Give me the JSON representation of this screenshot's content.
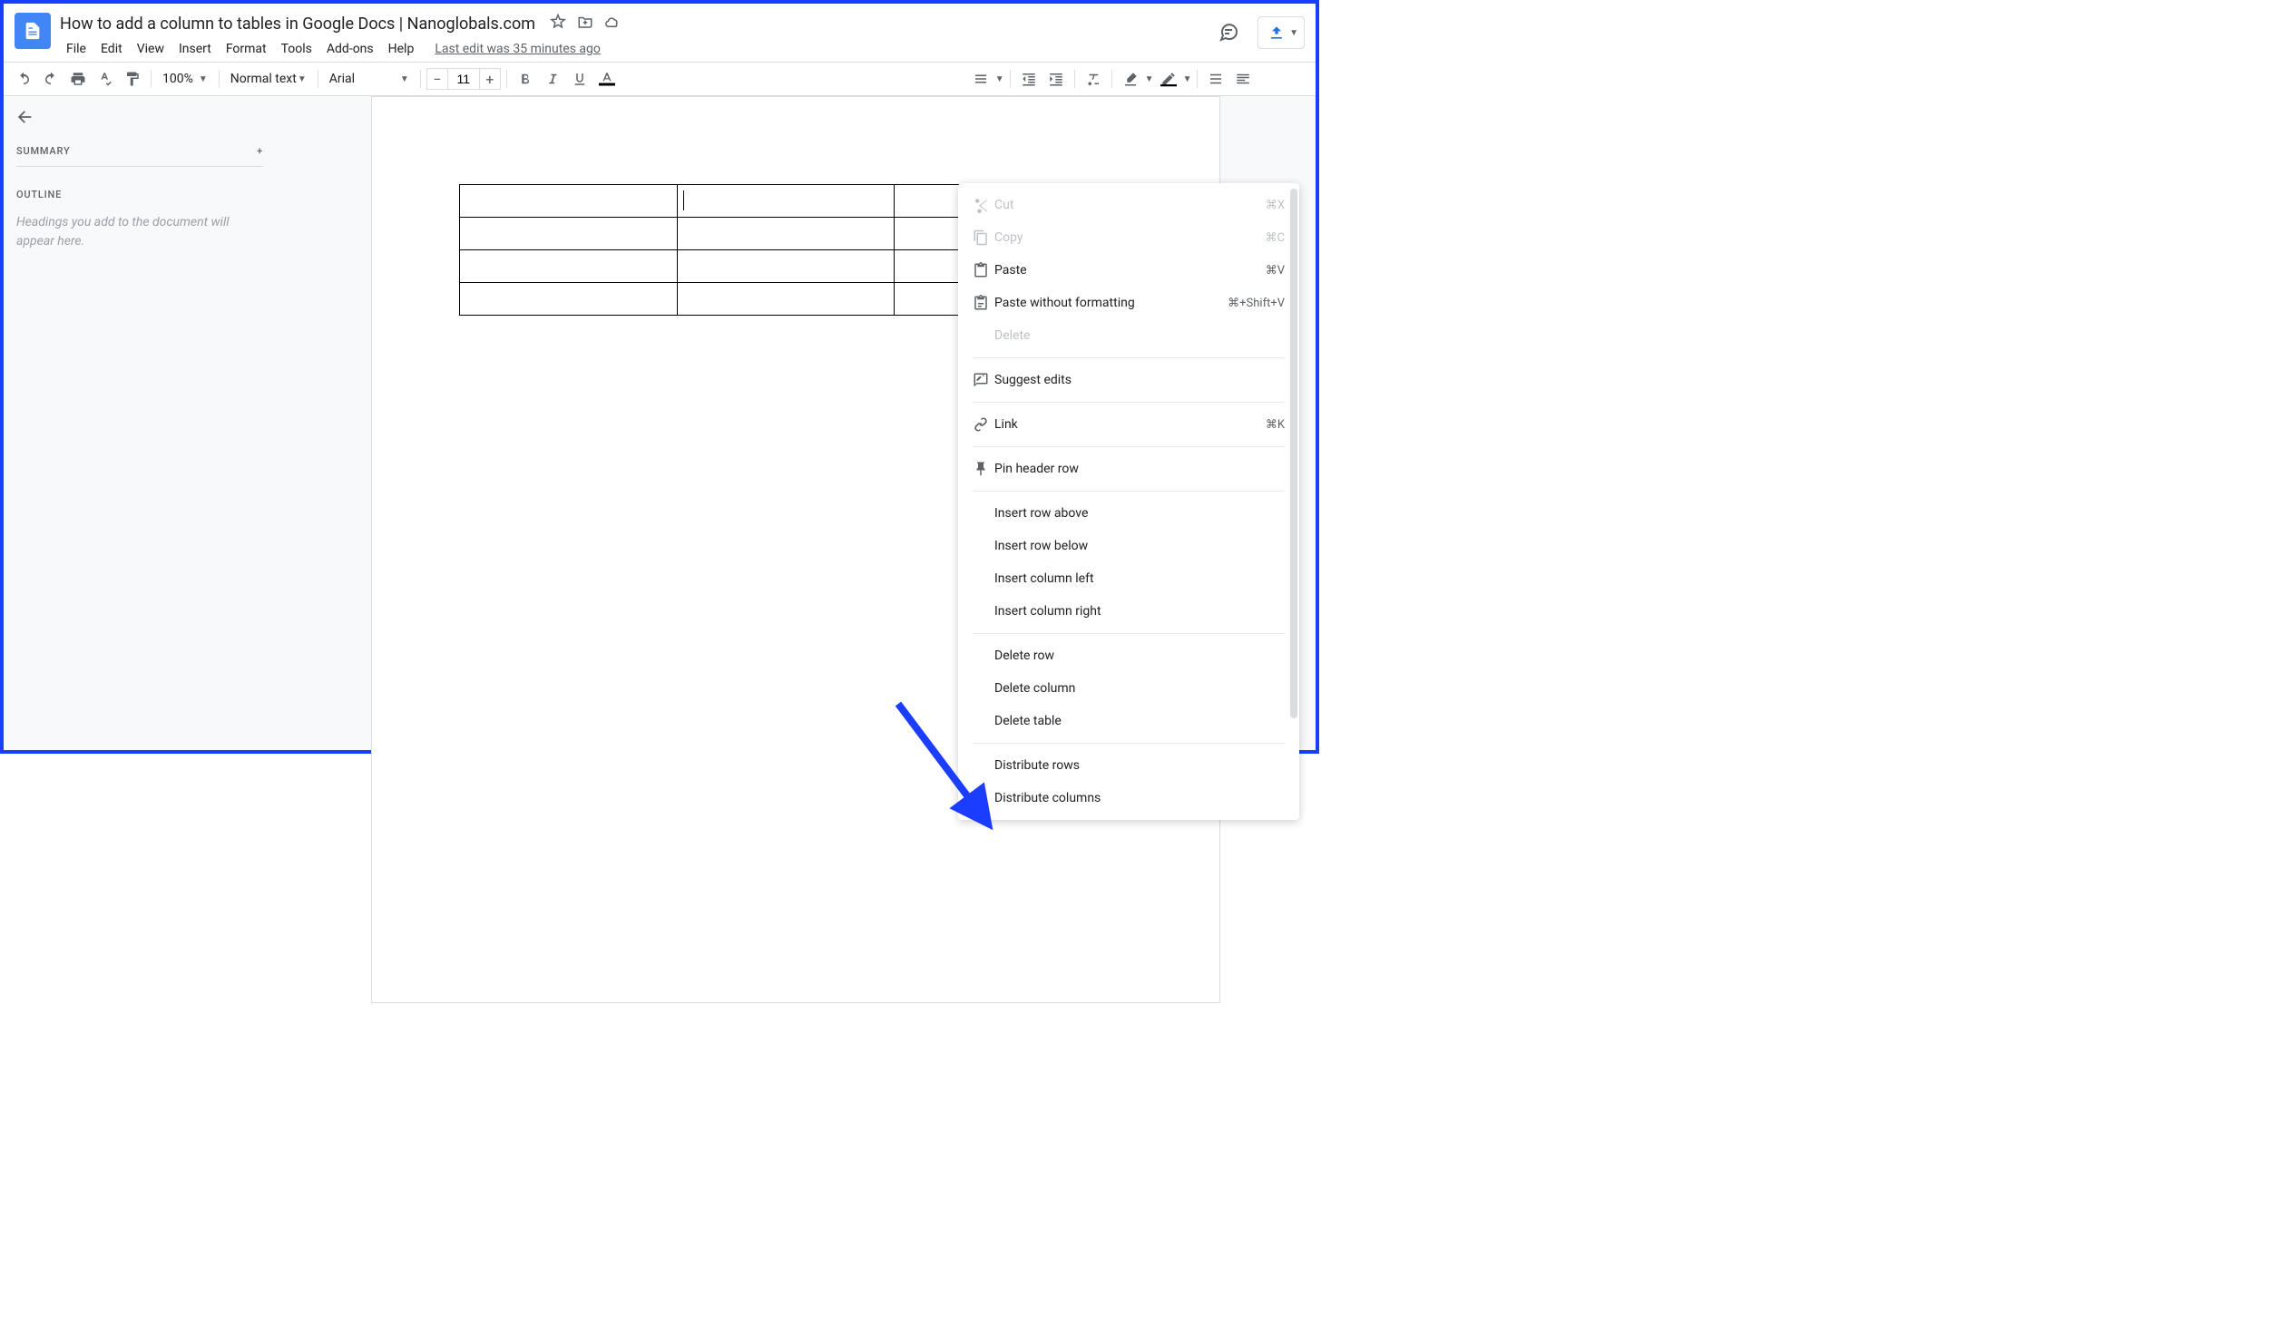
{
  "document": {
    "title": "How to add a column to tables in Google Docs | Nanoglobals.com",
    "last_edit": "Last edit was 35 minutes ago"
  },
  "menus": {
    "file": "File",
    "edit": "Edit",
    "view": "View",
    "insert": "Insert",
    "format": "Format",
    "tools": "Tools",
    "addons": "Add-ons",
    "help": "Help"
  },
  "toolbar": {
    "zoom": "100%",
    "style": "Normal text",
    "font": "Arial",
    "font_size": "11"
  },
  "sidebar": {
    "summary_label": "SUMMARY",
    "outline_label": "OUTLINE",
    "outline_empty": "Headings you add to the document will appear here."
  },
  "table": {
    "rows": 4,
    "cols": 3,
    "cursor_row": 0,
    "cursor_col": 1
  },
  "context_menu": {
    "items": [
      {
        "id": "cut",
        "label": "Cut",
        "shortcut": "⌘X",
        "icon": "scissors-icon",
        "disabled": true
      },
      {
        "id": "copy",
        "label": "Copy",
        "shortcut": "⌘C",
        "icon": "copy-icon",
        "disabled": true
      },
      {
        "id": "paste",
        "label": "Paste",
        "shortcut": "⌘V",
        "icon": "paste-icon",
        "disabled": false
      },
      {
        "id": "paste-plain",
        "label": "Paste without formatting",
        "shortcut": "⌘+Shift+V",
        "icon": "paste-plain-icon",
        "disabled": false
      },
      {
        "id": "delete",
        "label": "Delete",
        "shortcut": "",
        "icon": "",
        "disabled": true,
        "indent": true
      },
      {
        "sep": true
      },
      {
        "id": "suggest",
        "label": "Suggest edits",
        "shortcut": "",
        "icon": "suggest-icon",
        "disabled": false
      },
      {
        "sep": true
      },
      {
        "id": "link",
        "label": "Link",
        "shortcut": "⌘K",
        "icon": "link-icon",
        "disabled": false
      },
      {
        "sep": true
      },
      {
        "id": "pin-header",
        "label": "Pin header row",
        "shortcut": "",
        "icon": "pin-icon",
        "disabled": false
      },
      {
        "sep": true
      },
      {
        "id": "insert-row-above",
        "label": "Insert row above",
        "indent": true
      },
      {
        "id": "insert-row-below",
        "label": "Insert row below",
        "indent": true
      },
      {
        "id": "insert-col-left",
        "label": "Insert column left",
        "indent": true
      },
      {
        "id": "insert-col-right",
        "label": "Insert column right",
        "indent": true
      },
      {
        "sep": true
      },
      {
        "id": "delete-row",
        "label": "Delete row",
        "indent": true
      },
      {
        "id": "delete-col",
        "label": "Delete column",
        "indent": true
      },
      {
        "id": "delete-table",
        "label": "Delete table",
        "indent": true
      },
      {
        "sep": true
      },
      {
        "id": "dist-rows",
        "label": "Distribute rows",
        "indent": true
      },
      {
        "id": "dist-cols",
        "label": "Distribute columns",
        "indent": true
      }
    ]
  },
  "colors": {
    "brand_blue": "#4285f4",
    "link_blue": "#1a73e8",
    "border_gray": "#dadce0",
    "text_gray": "#5f6368",
    "disabled_gray": "#bdc1c6",
    "bg_gray": "#f8f9fa",
    "arrow_blue": "#1a3dff"
  }
}
